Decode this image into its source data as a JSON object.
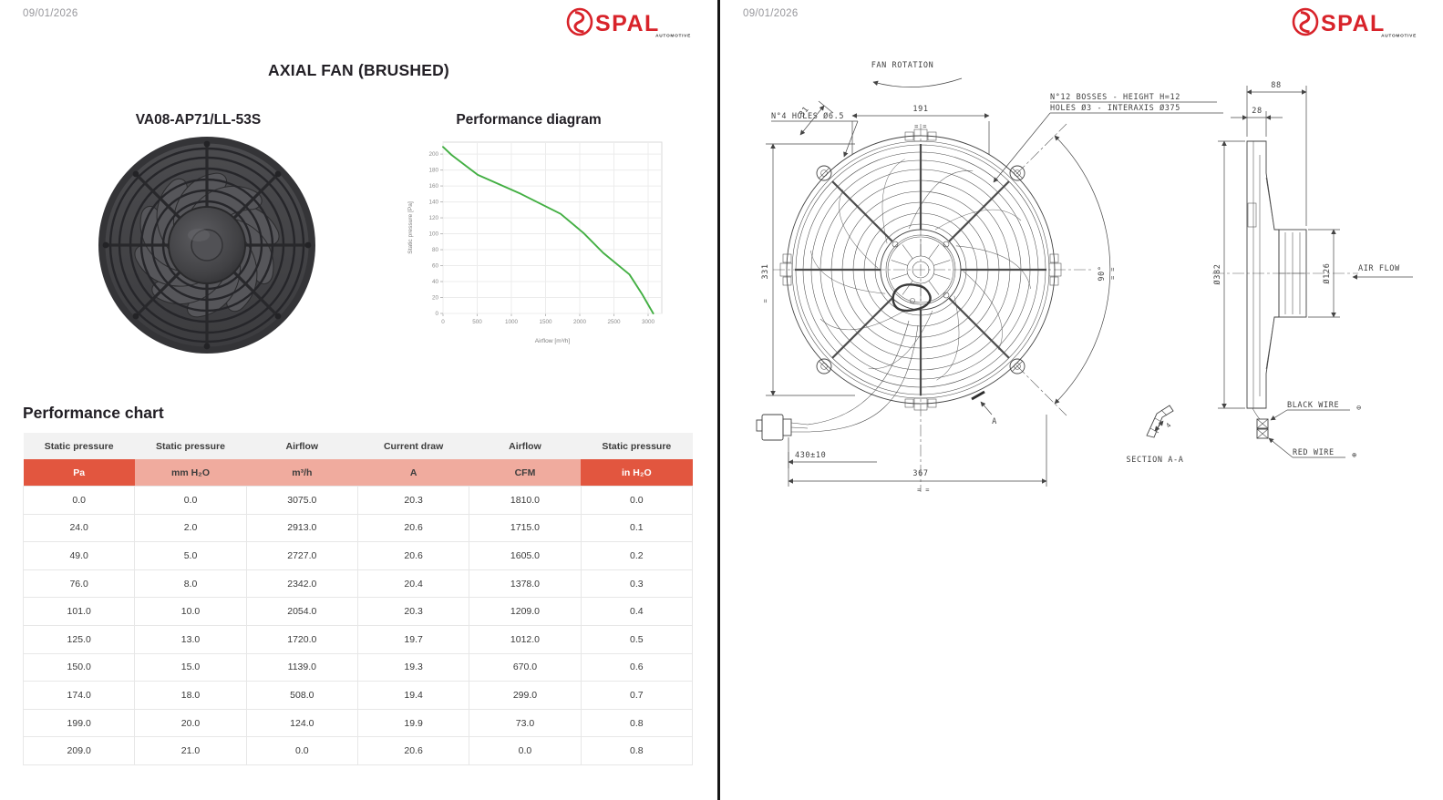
{
  "page_left": {
    "date": "09/01/2026",
    "title": "AXIAL FAN (BRUSHED)",
    "model": "VA08-AP71/LL-53S",
    "diagram_title": "Performance diagram",
    "chart_heading": "Performance chart"
  },
  "page_right": {
    "date": "09/01/2026"
  },
  "logo": {
    "brand": "SPAL",
    "sub": "AUTOMOTIVE",
    "color": "#d8232a"
  },
  "chart_data": {
    "type": "line",
    "title": "",
    "xlabel": "Airflow [m³/h]",
    "ylabel": "Static pressure [Pa]",
    "x": [
      0,
      124,
      508,
      1139,
      1720,
      2054,
      2342,
      2727,
      2913,
      3075
    ],
    "y": [
      209,
      199,
      174,
      150,
      125,
      101,
      76,
      49,
      24,
      0
    ],
    "x_ticks": [
      0,
      500,
      1000,
      1500,
      2000,
      2500,
      3000
    ],
    "y_ticks": [
      0,
      20,
      40,
      60,
      80,
      100,
      120,
      140,
      160,
      180,
      200
    ],
    "xlim": [
      0,
      3200
    ],
    "ylim": [
      0,
      215
    ],
    "grid": true,
    "legend": "none",
    "line_color": "#43af43"
  },
  "table": {
    "headers": [
      "Static pressure",
      "Static pressure",
      "Airflow",
      "Current draw",
      "Airflow",
      "Static pressure"
    ],
    "units": [
      "Pa",
      "mm H₂O",
      "m³/h",
      "A",
      "CFM",
      "in H₂O"
    ],
    "unit_styles": [
      "dark",
      "light",
      "light",
      "light",
      "light",
      "dark"
    ],
    "rows": [
      [
        "0.0",
        "0.0",
        "3075.0",
        "20.3",
        "1810.0",
        "0.0"
      ],
      [
        "24.0",
        "2.0",
        "2913.0",
        "20.6",
        "1715.0",
        "0.1"
      ],
      [
        "49.0",
        "5.0",
        "2727.0",
        "20.6",
        "1605.0",
        "0.2"
      ],
      [
        "76.0",
        "8.0",
        "2342.0",
        "20.4",
        "1378.0",
        "0.3"
      ],
      [
        "101.0",
        "10.0",
        "2054.0",
        "20.3",
        "1209.0",
        "0.4"
      ],
      [
        "125.0",
        "13.0",
        "1720.0",
        "19.7",
        "1012.0",
        "0.5"
      ],
      [
        "150.0",
        "15.0",
        "1139.0",
        "19.3",
        "670.0",
        "0.6"
      ],
      [
        "174.0",
        "18.0",
        "508.0",
        "19.4",
        "299.0",
        "0.7"
      ],
      [
        "199.0",
        "20.0",
        "124.0",
        "19.9",
        "73.0",
        "0.8"
      ],
      [
        "209.0",
        "21.0",
        "0.0",
        "20.6",
        "0.0",
        "0.8"
      ]
    ],
    "colors": {
      "unit_dark_bg": "#e2563f",
      "unit_light_bg": "#f0ab9e",
      "header_bg": "#f2f2f2"
    }
  },
  "drawing": {
    "fan_rotation": "FAN ROTATION",
    "dim_191": "191",
    "holes_label": "N°4 HOLES Ø6.5",
    "bosses_line1": "N°12 BOSSES - HEIGHT H=12",
    "bosses_line2": "HOLES Ø3 - INTERAXIS Ø375",
    "dim_331": "331",
    "dim_31": "31",
    "dim_90": "90°",
    "dim_430": "430±10",
    "dim_367": "367",
    "label_a": "A",
    "section_label": "SECTION A-A",
    "section_dim": "4",
    "dim_88": "88",
    "dim_28": "28",
    "dim_382": "Ø382",
    "dim_126": "Ø126",
    "airflow_label": "AIR FLOW",
    "black_wire": "BLACK WIRE",
    "black_wire_symbol": "⊖",
    "red_wire": "RED WIRE",
    "red_wire_symbol": "⊕",
    "eq_marks": "= =",
    "eq_mark": "="
  }
}
